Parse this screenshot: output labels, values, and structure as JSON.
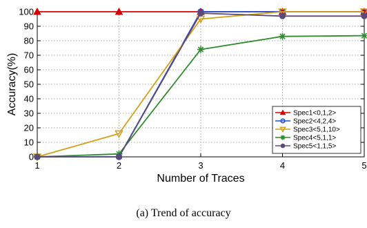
{
  "chart_data": {
    "type": "line",
    "title": "",
    "xlabel": "Number of Traces",
    "ylabel": "Accuracy(%)",
    "x": [
      1,
      2,
      3,
      4,
      5
    ],
    "xlim": [
      1,
      5
    ],
    "ylim": [
      0,
      100
    ],
    "xticks": [
      "1",
      "2",
      "3",
      "4",
      "5"
    ],
    "yticks": [
      "0",
      "10",
      "20",
      "30",
      "40",
      "50",
      "60",
      "70",
      "80",
      "90",
      "100"
    ],
    "grid": true,
    "legend_position": "bottom-right",
    "series": [
      {
        "name": "Spec1<0,1,2>",
        "values": [
          100,
          100,
          100,
          100,
          100
        ],
        "color": "#d60000",
        "marker": "triangle-up"
      },
      {
        "name": "Spec2<4,2,4>",
        "values": [
          0,
          0,
          100,
          100,
          100
        ],
        "color": "#1f4fd6",
        "marker": "circle-open"
      },
      {
        "name": "Spec3<5,1,10>",
        "values": [
          0,
          16,
          95,
          100,
          100
        ],
        "color": "#d4a017",
        "marker": "triangle-down"
      },
      {
        "name": "Spec4<5,1,1>",
        "values": [
          0,
          2,
          74,
          83,
          83.5
        ],
        "color": "#2e8b2e",
        "marker": "asterisk"
      },
      {
        "name": "Spec5<1,1,5>",
        "values": [
          0,
          0,
          99,
          97,
          97
        ],
        "color": "#5a4a78",
        "marker": "circle-filled"
      }
    ]
  },
  "caption": "(a) Trend of accuracy"
}
